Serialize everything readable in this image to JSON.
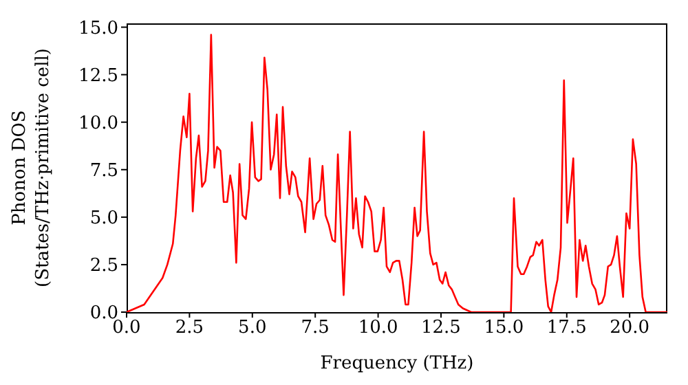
{
  "chart_data": {
    "type": "line",
    "xlabel": "Frequency (THz)",
    "ylabel": "Phonon DOS\n(States/THz·primitive cell)",
    "color": "#ff0000",
    "x": [
      0,
      0.7,
      1.43,
      1.62,
      1.84,
      1.95,
      2.13,
      2.26,
      2.39,
      2.5,
      2.63,
      2.76,
      2.87,
      3.0,
      3.13,
      3.24,
      3.36,
      3.49,
      3.6,
      3.73,
      3.86,
      4.0,
      4.12,
      4.23,
      4.36,
      4.49,
      4.61,
      4.74,
      4.87,
      4.98,
      5.11,
      5.24,
      5.35,
      5.48,
      5.6,
      5.73,
      5.86,
      5.97,
      6.1,
      6.21,
      6.34,
      6.47,
      6.58,
      6.71,
      6.82,
      6.95,
      7.1,
      7.28,
      7.43,
      7.55,
      7.68,
      7.79,
      7.91,
      8.04,
      8.18,
      8.29,
      8.4,
      8.51,
      8.63,
      8.76,
      8.88,
      9.01,
      9.12,
      9.24,
      9.37,
      9.48,
      9.6,
      9.73,
      9.86,
      9.98,
      10.11,
      10.22,
      10.34,
      10.47,
      10.59,
      10.72,
      10.84,
      10.97,
      11.09,
      11.2,
      11.33,
      11.45,
      11.56,
      11.67,
      11.82,
      11.94,
      12.07,
      12.19,
      12.32,
      12.45,
      12.56,
      12.68,
      12.81,
      12.93,
      13.06,
      13.19,
      13.37,
      13.7,
      14.5,
      15.28,
      15.4,
      15.55,
      15.68,
      15.79,
      15.92,
      16.05,
      16.16,
      16.29,
      16.4,
      16.53,
      16.65,
      16.76,
      16.88,
      17.0,
      17.13,
      17.26,
      17.39,
      17.52,
      17.65,
      17.76,
      17.89,
      18.01,
      18.14,
      18.25,
      18.38,
      18.51,
      18.64,
      18.77,
      18.9,
      19.01,
      19.14,
      19.26,
      19.38,
      19.5,
      19.61,
      19.74,
      19.87,
      20.0,
      20.13,
      20.26,
      20.39,
      20.51,
      20.64,
      21.5
    ],
    "values": [
      0,
      0.4,
      1.8,
      2.5,
      3.6,
      5.1,
      8.5,
      10.3,
      9.2,
      11.5,
      5.3,
      8.1,
      9.3,
      6.6,
      6.9,
      8.5,
      14.6,
      7.6,
      8.7,
      8.5,
      5.8,
      5.8,
      7.2,
      6.3,
      2.6,
      7.8,
      5.1,
      4.9,
      6.5,
      10.0,
      7.1,
      6.9,
      7.0,
      13.4,
      11.7,
      7.5,
      8.3,
      10.4,
      6.0,
      10.8,
      7.7,
      6.2,
      7.4,
      7.1,
      6.1,
      5.8,
      4.2,
      8.1,
      4.9,
      5.7,
      5.9,
      7.7,
      5.1,
      4.6,
      3.8,
      3.7,
      8.3,
      4.7,
      0.9,
      5.1,
      9.5,
      4.4,
      6.0,
      4.1,
      3.4,
      6.1,
      5.8,
      5.3,
      3.2,
      3.2,
      3.8,
      5.5,
      2.4,
      2.1,
      2.6,
      2.7,
      2.7,
      1.7,
      0.4,
      0.4,
      2.6,
      5.5,
      4.0,
      4.3,
      9.5,
      5.3,
      3.1,
      2.5,
      2.6,
      1.7,
      1.5,
      2.1,
      1.4,
      1.2,
      0.8,
      0.4,
      0.2,
      0,
      0,
      0,
      6.0,
      2.4,
      2.0,
      2.0,
      2.4,
      2.9,
      3.0,
      3.7,
      3.5,
      3.8,
      1.7,
      0.3,
      0,
      0.9,
      1.7,
      3.4,
      12.2,
      4.7,
      6.5,
      8.1,
      0.8,
      3.8,
      2.7,
      3.5,
      2.4,
      1.5,
      1.2,
      0.4,
      0.5,
      0.9,
      2.4,
      2.5,
      3.0,
      4.0,
      2.4,
      0.8,
      5.2,
      4.4,
      9.1,
      7.8,
      3.0,
      0.8,
      0,
      0
    ],
    "xlim": [
      0,
      21.5
    ],
    "ylim": [
      0,
      15.2
    ],
    "xticks": [
      {
        "value": 0,
        "label": "0.0"
      },
      {
        "value": 2.5,
        "label": "2.5"
      },
      {
        "value": 5,
        "label": "5.0"
      },
      {
        "value": 7.5,
        "label": "7.5"
      },
      {
        "value": 10,
        "label": "10.0"
      },
      {
        "value": 12.5,
        "label": "12.5"
      },
      {
        "value": 15,
        "label": "15.0"
      },
      {
        "value": 17.5,
        "label": "17.5"
      },
      {
        "value": 20,
        "label": "20.0"
      }
    ],
    "yticks": [
      {
        "value": 0,
        "label": "0.0"
      },
      {
        "value": 2.5,
        "label": "2.5"
      },
      {
        "value": 5,
        "label": "5.0"
      },
      {
        "value": 7.5,
        "label": "7.5"
      },
      {
        "value": 10,
        "label": "10.0"
      },
      {
        "value": 12.5,
        "label": "12.5"
      },
      {
        "value": 15,
        "label": "15.0"
      }
    ]
  }
}
